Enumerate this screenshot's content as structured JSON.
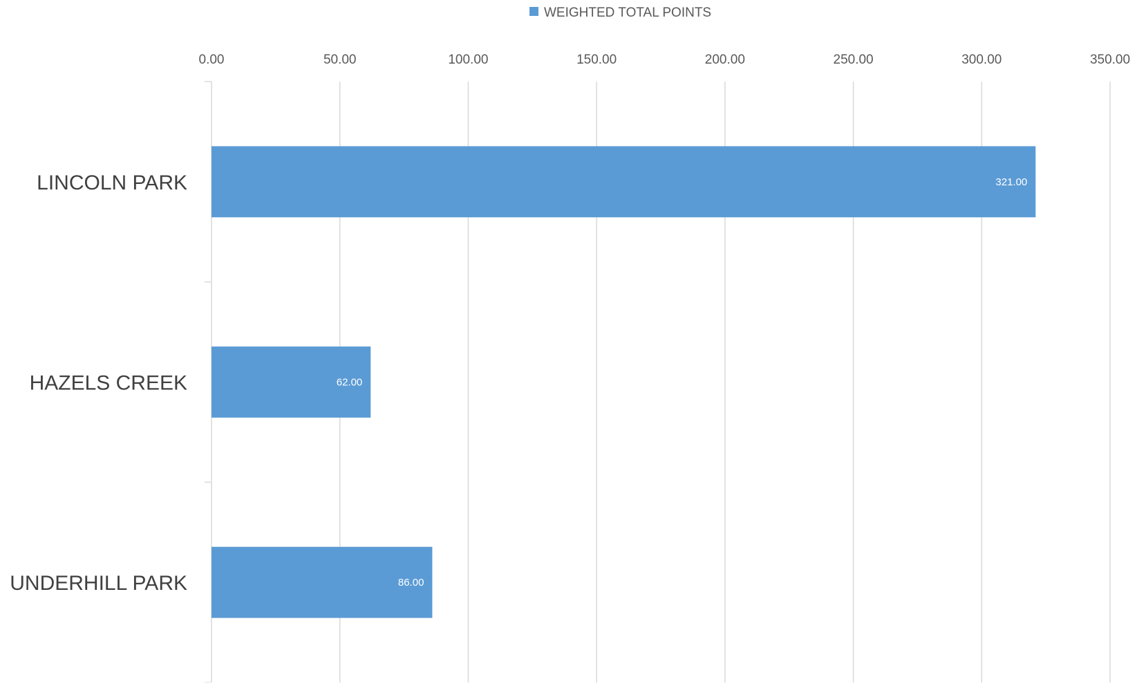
{
  "chart_data": {
    "type": "bar",
    "orientation": "horizontal",
    "categories": [
      "LINCOLN PARK",
      "HAZELS CREEK",
      "UNDERHILL PARK"
    ],
    "series": [
      {
        "name": "WEIGHTED TOTAL POINTS",
        "values": [
          321.0,
          62.0,
          86.0
        ],
        "data_labels": [
          "321.00",
          "62.00",
          "86.00"
        ],
        "color": "#5b9bd5"
      }
    ],
    "xlim": [
      0,
      350
    ],
    "x_ticks": [
      0,
      50,
      100,
      150,
      200,
      250,
      300,
      350
    ],
    "x_tick_labels": [
      "0.00",
      "50.00",
      "100.00",
      "150.00",
      "200.00",
      "250.00",
      "300.00",
      "350.00"
    ],
    "x_axis_position": "top",
    "grid": true,
    "legend": {
      "position": "top",
      "entries": [
        "WEIGHTED TOTAL POINTS"
      ]
    },
    "title": "",
    "xlabel": "",
    "ylabel": ""
  }
}
